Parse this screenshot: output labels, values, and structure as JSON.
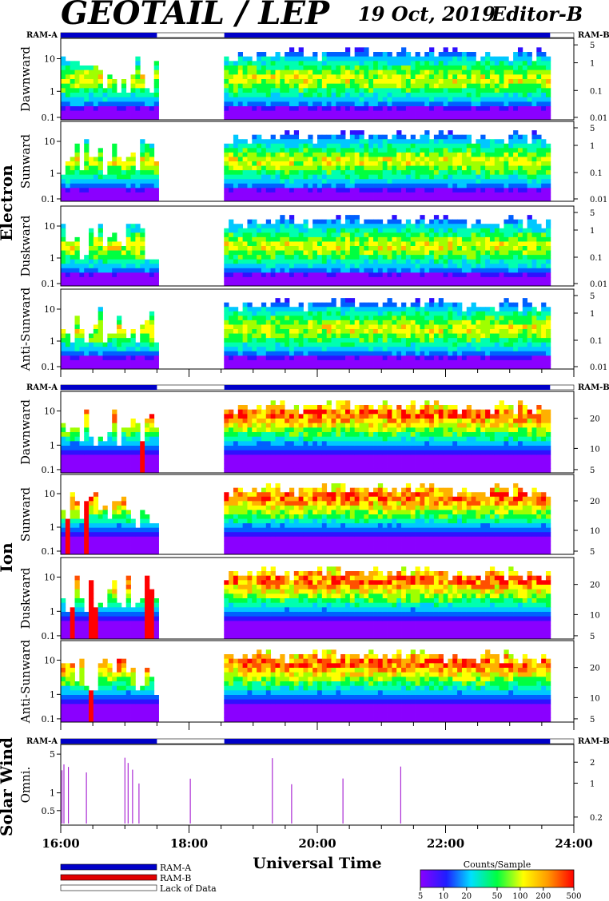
{
  "header": {
    "title": "GEOTAIL / LEP",
    "date": "19 Oct, 2019",
    "editor": "Editor-B"
  },
  "chart_data": {
    "type": "heatmap",
    "time_axis": {
      "label": "Universal Time",
      "ticks": [
        "16:00",
        "18:00",
        "20:00",
        "22:00",
        "24:00"
      ],
      "range_hours": [
        16,
        24
      ]
    },
    "ram_labels": {
      "left": "RAM-A",
      "right": "RAM-B"
    },
    "data_gaps_hours": [
      [
        17.5,
        18.55
      ],
      [
        23.63,
        24.0
      ]
    ],
    "groups": [
      {
        "name": "Electron",
        "left_ticks": [
          "10",
          "1",
          "0.1"
        ],
        "right_ticks": [
          "5",
          "1",
          "0.1",
          "0.01"
        ],
        "panels": [
          {
            "label": "Dawnward"
          },
          {
            "label": "Sunward"
          },
          {
            "label": "Duskward"
          },
          {
            "label": "Anti-Sunward"
          }
        ]
      },
      {
        "name": "Ion",
        "left_ticks": [
          "10",
          "1",
          "0.1"
        ],
        "right_ticks": [
          "20",
          "10",
          "5"
        ],
        "panels": [
          {
            "label": "Dawnward"
          },
          {
            "label": "Sunward"
          },
          {
            "label": "Duskward"
          },
          {
            "label": "Anti-Sunward"
          }
        ]
      },
      {
        "name": "Solar Wind",
        "left_ticks": [
          "5",
          "1",
          "0.5"
        ],
        "right_ticks": [
          "2",
          "1",
          "0.2"
        ],
        "panels": [
          {
            "label": "Omni."
          }
        ]
      }
    ],
    "legend": {
      "items": [
        "RAM-A",
        "RAM-B",
        "Lack of Data"
      ],
      "colors": [
        "#0000c8",
        "#e00000",
        "#ffffff"
      ]
    },
    "colorbar": {
      "title": "Counts/Sample",
      "ticks": [
        "5",
        "10",
        "20",
        "50",
        "100",
        "200",
        "500"
      ],
      "scale": "log"
    }
  }
}
